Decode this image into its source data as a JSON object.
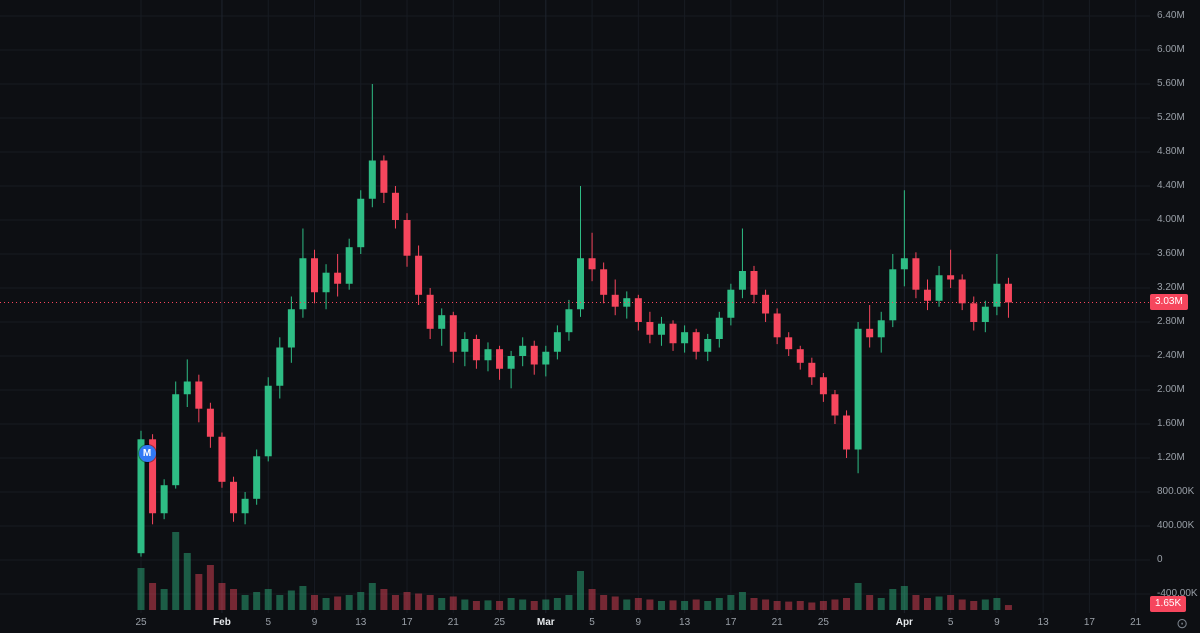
{
  "colors": {
    "background": "#0d0f13",
    "up": "#2ebd85",
    "down": "#f6465d",
    "volume_up": "rgba(46,189,133,0.45)",
    "volume_down": "rgba(246,70,93,0.45)",
    "grid": "#171b22",
    "grid_month": "#1e242e",
    "axis_text": "#9aa0a8",
    "month_text": "#e6e9ec",
    "price_line": "#f6465d",
    "badge_bg": "#f6465d",
    "badge_text": "#ffffff",
    "marker_bg": "#3179f5",
    "icon": "#7b828c"
  },
  "icons": {
    "target_glyph": "⊙"
  },
  "chart_data": {
    "type": "candlestick",
    "price_unit": "M",
    "volume_unit": "K",
    "grid": true,
    "legend": "none",
    "ylim_m": [
      -0.4,
      6.55
    ],
    "dates": [
      "Jan 25",
      "Jan 26",
      "Jan 27",
      "Jan 28",
      "Jan 29",
      "Jan 30",
      "Jan 31",
      "Feb 1",
      "Feb 2",
      "Feb 3",
      "Feb 4",
      "Feb 5",
      "Feb 6",
      "Feb 7",
      "Feb 8",
      "Feb 9",
      "Feb 10",
      "Feb 11",
      "Feb 12",
      "Feb 13",
      "Feb 14",
      "Feb 15",
      "Feb 16",
      "Feb 17",
      "Feb 18",
      "Feb 19",
      "Feb 20",
      "Feb 21",
      "Feb 22",
      "Feb 23",
      "Feb 24",
      "Feb 25",
      "Feb 26",
      "Feb 27",
      "Feb 28",
      "Mar 1",
      "Mar 2",
      "Mar 3",
      "Mar 4",
      "Mar 5",
      "Mar 6",
      "Mar 7",
      "Mar 8",
      "Mar 9",
      "Mar 10",
      "Mar 11",
      "Mar 12",
      "Mar 13",
      "Mar 14",
      "Mar 15",
      "Mar 16",
      "Mar 17",
      "Mar 18",
      "Mar 19",
      "Mar 20",
      "Mar 21",
      "Mar 22",
      "Mar 23",
      "Mar 24",
      "Mar 25",
      "Mar 26",
      "Mar 27",
      "Mar 28",
      "Mar 29",
      "Mar 30",
      "Mar 31",
      "Apr 1",
      "Apr 2",
      "Apr 3",
      "Apr 4",
      "Apr 5",
      "Apr 6",
      "Apr 7",
      "Apr 8",
      "Apr 9",
      "Apr 10"
    ],
    "candles": [
      [
        0.08,
        1.52,
        0.04,
        1.42
      ],
      [
        1.42,
        1.48,
        0.42,
        0.55
      ],
      [
        0.55,
        0.95,
        0.48,
        0.88
      ],
      [
        0.88,
        2.1,
        0.84,
        1.95
      ],
      [
        1.95,
        2.36,
        1.8,
        2.1
      ],
      [
        2.1,
        2.18,
        1.62,
        1.78
      ],
      [
        1.78,
        1.85,
        1.32,
        1.45
      ],
      [
        1.45,
        1.5,
        0.85,
        0.92
      ],
      [
        0.92,
        0.98,
        0.45,
        0.55
      ],
      [
        0.55,
        0.8,
        0.42,
        0.72
      ],
      [
        0.72,
        1.3,
        0.65,
        1.22
      ],
      [
        1.22,
        2.15,
        1.16,
        2.05
      ],
      [
        2.05,
        2.62,
        1.9,
        2.5
      ],
      [
        2.5,
        3.1,
        2.32,
        2.95
      ],
      [
        2.95,
        3.9,
        2.85,
        3.55
      ],
      [
        3.55,
        3.65,
        3.02,
        3.15
      ],
      [
        3.15,
        3.48,
        2.95,
        3.38
      ],
      [
        3.38,
        3.6,
        3.1,
        3.25
      ],
      [
        3.25,
        3.78,
        3.18,
        3.68
      ],
      [
        3.68,
        4.35,
        3.6,
        4.25
      ],
      [
        4.25,
        5.6,
        4.15,
        4.7
      ],
      [
        4.7,
        4.76,
        4.2,
        4.32
      ],
      [
        4.32,
        4.4,
        3.9,
        4.0
      ],
      [
        4.0,
        4.08,
        3.45,
        3.58
      ],
      [
        3.58,
        3.7,
        3.0,
        3.12
      ],
      [
        3.12,
        3.2,
        2.6,
        2.72
      ],
      [
        2.72,
        2.96,
        2.52,
        2.88
      ],
      [
        2.88,
        2.92,
        2.32,
        2.45
      ],
      [
        2.45,
        2.68,
        2.28,
        2.6
      ],
      [
        2.6,
        2.65,
        2.25,
        2.35
      ],
      [
        2.35,
        2.56,
        2.22,
        2.48
      ],
      [
        2.48,
        2.52,
        2.12,
        2.25
      ],
      [
        2.25,
        2.46,
        2.02,
        2.4
      ],
      [
        2.4,
        2.62,
        2.28,
        2.52
      ],
      [
        2.52,
        2.58,
        2.18,
        2.3
      ],
      [
        2.3,
        2.52,
        2.16,
        2.45
      ],
      [
        2.45,
        2.76,
        2.36,
        2.68
      ],
      [
        2.68,
        3.06,
        2.58,
        2.95
      ],
      [
        2.95,
        4.4,
        2.86,
        3.55
      ],
      [
        3.55,
        3.85,
        3.28,
        3.42
      ],
      [
        3.42,
        3.5,
        3.02,
        3.12
      ],
      [
        3.12,
        3.3,
        2.88,
        2.98
      ],
      [
        2.98,
        3.16,
        2.84,
        3.08
      ],
      [
        3.08,
        3.12,
        2.7,
        2.8
      ],
      [
        2.8,
        2.92,
        2.55,
        2.65
      ],
      [
        2.65,
        2.86,
        2.52,
        2.78
      ],
      [
        2.78,
        2.82,
        2.46,
        2.55
      ],
      [
        2.55,
        2.76,
        2.44,
        2.68
      ],
      [
        2.68,
        2.72,
        2.36,
        2.45
      ],
      [
        2.45,
        2.66,
        2.34,
        2.6
      ],
      [
        2.6,
        2.92,
        2.5,
        2.85
      ],
      [
        2.85,
        3.25,
        2.76,
        3.18
      ],
      [
        3.18,
        3.9,
        3.08,
        3.4
      ],
      [
        3.4,
        3.46,
        3.02,
        3.12
      ],
      [
        3.12,
        3.18,
        2.8,
        2.9
      ],
      [
        2.9,
        2.96,
        2.54,
        2.62
      ],
      [
        2.62,
        2.68,
        2.4,
        2.48
      ],
      [
        2.48,
        2.52,
        2.24,
        2.32
      ],
      [
        2.32,
        2.38,
        2.06,
        2.15
      ],
      [
        2.15,
        2.2,
        1.86,
        1.95
      ],
      [
        1.95,
        2.0,
        1.6,
        1.7
      ],
      [
        1.7,
        1.76,
        1.2,
        1.3
      ],
      [
        1.3,
        2.8,
        1.02,
        2.72
      ],
      [
        2.72,
        3.0,
        2.5,
        2.62
      ],
      [
        2.62,
        2.92,
        2.44,
        2.82
      ],
      [
        2.82,
        3.6,
        2.74,
        3.42
      ],
      [
        3.42,
        4.35,
        3.22,
        3.55
      ],
      [
        3.55,
        3.62,
        3.08,
        3.18
      ],
      [
        3.18,
        3.3,
        2.94,
        3.05
      ],
      [
        3.05,
        3.46,
        2.98,
        3.35
      ],
      [
        3.35,
        3.65,
        3.2,
        3.3
      ],
      [
        3.3,
        3.36,
        2.94,
        3.02
      ],
      [
        3.02,
        3.1,
        2.7,
        2.8
      ],
      [
        2.8,
        3.05,
        2.68,
        2.98
      ],
      [
        2.98,
        3.6,
        2.88,
        3.25
      ],
      [
        3.25,
        3.32,
        2.85,
        3.03
      ]
    ],
    "volumes": [
      14,
      9,
      7,
      26,
      19,
      12,
      15,
      9,
      7,
      5,
      6,
      7,
      5,
      6.5,
      8,
      5,
      4,
      4.5,
      5,
      6,
      9,
      7,
      5,
      6,
      5.5,
      5,
      4,
      4.5,
      3.5,
      3,
      3.2,
      3,
      4,
      3.5,
      3,
      3.5,
      4,
      5,
      13,
      7,
      5,
      4.5,
      3.5,
      4,
      3.5,
      3,
      3.2,
      3,
      3.5,
      3,
      4,
      5,
      6,
      4,
      3.5,
      3,
      2.8,
      3,
      2.5,
      3,
      3.5,
      4,
      9,
      5,
      4,
      7,
      8,
      5,
      4,
      4.5,
      5,
      3.5,
      3,
      3.5,
      4,
      1.65
    ],
    "price_axis_labels": [
      {
        "label": "6.40M",
        "value": 6.4
      },
      {
        "label": "6.00M",
        "value": 6.0
      },
      {
        "label": "5.60M",
        "value": 5.6
      },
      {
        "label": "5.20M",
        "value": 5.2
      },
      {
        "label": "4.80M",
        "value": 4.8
      },
      {
        "label": "4.40M",
        "value": 4.4
      },
      {
        "label": "4.00M",
        "value": 4.0
      },
      {
        "label": "3.60M",
        "value": 3.6
      },
      {
        "label": "3.20M",
        "value": 3.2
      },
      {
        "label": "2.80M",
        "value": 2.8
      },
      {
        "label": "2.40M",
        "value": 2.4
      },
      {
        "label": "2.00M",
        "value": 2.0
      },
      {
        "label": "1.60M",
        "value": 1.6
      },
      {
        "label": "1.20M",
        "value": 1.2
      },
      {
        "label": "800.00K",
        "value": 0.8
      },
      {
        "label": "400.00K",
        "value": 0.4
      },
      {
        "label": "0",
        "value": 0
      },
      {
        "label": "-400.00K",
        "value": -0.4
      }
    ],
    "time_ticks": [
      {
        "label": "25",
        "i": 0,
        "month": false
      },
      {
        "label": "Feb",
        "i": 7,
        "month": true
      },
      {
        "label": "5",
        "i": 11,
        "month": false
      },
      {
        "label": "9",
        "i": 15,
        "month": false
      },
      {
        "label": "13",
        "i": 19,
        "month": false
      },
      {
        "label": "17",
        "i": 23,
        "month": false
      },
      {
        "label": "21",
        "i": 27,
        "month": false
      },
      {
        "label": "25",
        "i": 31,
        "month": false
      },
      {
        "label": "Mar",
        "i": 35,
        "month": true
      },
      {
        "label": "5",
        "i": 39,
        "month": false
      },
      {
        "label": "9",
        "i": 43,
        "month": false
      },
      {
        "label": "13",
        "i": 47,
        "month": false
      },
      {
        "label": "17",
        "i": 51,
        "month": false
      },
      {
        "label": "21",
        "i": 55,
        "month": false
      },
      {
        "label": "25",
        "i": 59,
        "month": false
      },
      {
        "label": "Apr",
        "i": 66,
        "month": true
      },
      {
        "label": "5",
        "i": 70,
        "month": false
      },
      {
        "label": "9",
        "i": 74,
        "month": false
      },
      {
        "label": "13",
        "i": 78,
        "month": false
      },
      {
        "label": "17",
        "i": 82,
        "month": false
      },
      {
        "label": "21",
        "i": 86,
        "month": false
      }
    ],
    "current_price": {
      "label": "3.03M",
      "value": 3.03
    },
    "current_volume": {
      "label": "1.65K",
      "value": 1.65
    },
    "marker": {
      "label": "M",
      "index": 0,
      "value": 1.25
    }
  }
}
